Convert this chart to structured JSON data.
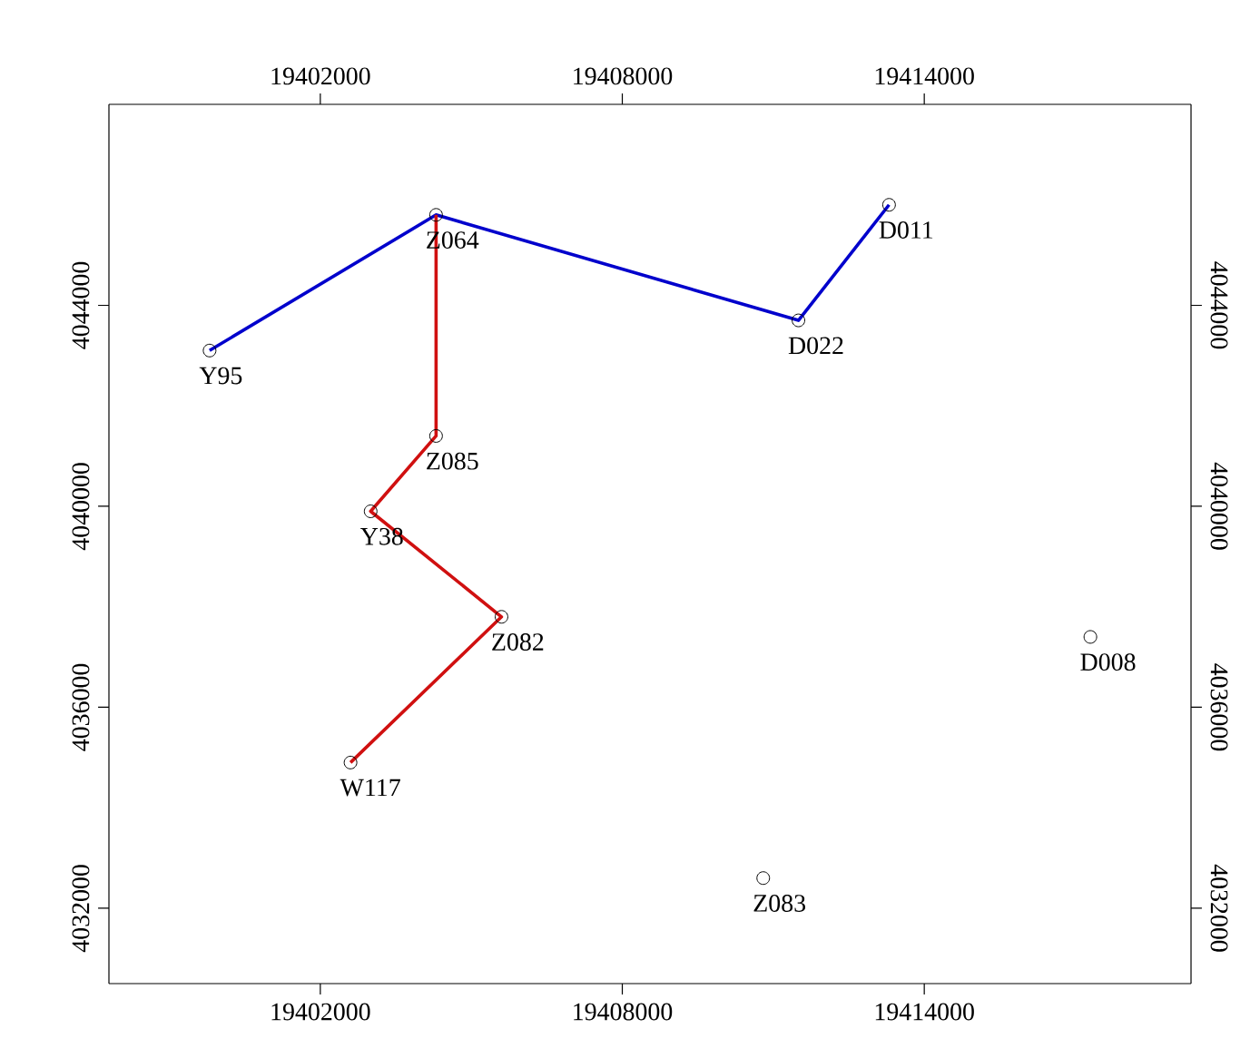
{
  "chart_data": {
    "type": "scatter",
    "xlim": [
      19397800,
      19419300
    ],
    "ylim": [
      4030500,
      4048000
    ],
    "xticks": [
      19402000,
      19408000,
      19414000
    ],
    "yticks": [
      4032000,
      4036000,
      4040000,
      4044000
    ],
    "x2lim": [
      19397800,
      19419300
    ],
    "y2lim": [
      4030500,
      4048000
    ],
    "x2ticks": [
      19402000,
      19408000,
      19414000
    ],
    "y2ticks": [
      4032000,
      4036000,
      4040000,
      4044000
    ],
    "series": [
      {
        "type": "line",
        "color": "#0000cc",
        "marker": "none",
        "line_style": "solid",
        "x": [
          19399800,
          19404300,
          19411500,
          19413300
        ],
        "values": [
          4043100,
          4045800,
          4043700,
          4046000
        ]
      },
      {
        "type": "line",
        "color": "#d01010",
        "marker": "none",
        "line_style": "solid",
        "x": [
          19404300,
          19404300,
          19403000,
          19405600,
          19402600
        ],
        "values": [
          4045800,
          4041400,
          4039900,
          4037800,
          4034900
        ]
      },
      {
        "color": "#000000",
        "marker": "circle",
        "x": [
          19399800,
          19404300,
          19411500,
          19413300,
          19404300,
          19403000,
          19405600,
          19402600,
          19410800,
          19417300
        ],
        "values": [
          4043100,
          4045800,
          4043700,
          4046000,
          4041400,
          4039900,
          4037800,
          4034900,
          4032600,
          4037400
        ]
      }
    ],
    "annotations": [
      {
        "text": "Y95",
        "x": 19399800,
        "y": 4043100
      },
      {
        "text": "Z064",
        "x": 19404300,
        "y": 4045800
      },
      {
        "text": "D022",
        "x": 19411500,
        "y": 4043700
      },
      {
        "text": "D011",
        "x": 19413300,
        "y": 4046000
      },
      {
        "text": "Z085",
        "x": 19404300,
        "y": 4041400
      },
      {
        "text": "Y38",
        "x": 19403000,
        "y": 4039900
      },
      {
        "text": "Z082",
        "x": 19405600,
        "y": 4037800
      },
      {
        "text": "W117",
        "x": 19402600,
        "y": 4034900
      },
      {
        "text": "Z083",
        "x": 19410800,
        "y": 4032600
      },
      {
        "text": "D008",
        "x": 19417300,
        "y": 4037400
      }
    ]
  }
}
